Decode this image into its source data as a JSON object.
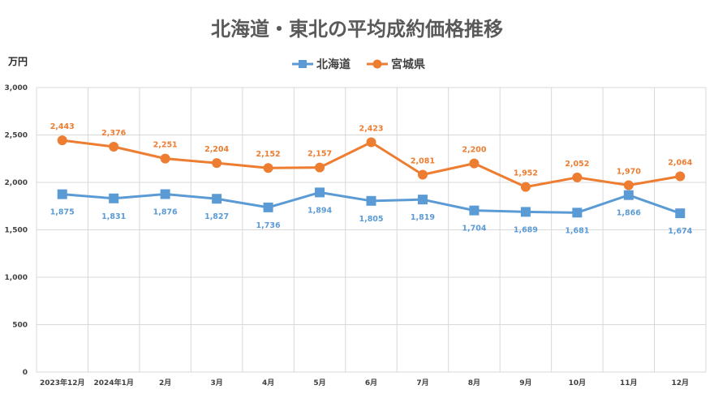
{
  "chart_data": {
    "type": "line",
    "title": "北海道・東北の平均成約価格推移",
    "ylabel": "万円",
    "ylim": [
      0,
      3000
    ],
    "yticks": [
      0,
      500,
      1000,
      1500,
      2000,
      2500,
      3000
    ],
    "ytick_labels": [
      "0",
      "500",
      "1,000",
      "1,500",
      "2,000",
      "2,500",
      "3,000"
    ],
    "categories": [
      "2023年12月",
      "2024年1月",
      "2月",
      "3月",
      "4月",
      "5月",
      "6月",
      "7月",
      "8月",
      "9月",
      "10月",
      "11月",
      "12月"
    ],
    "legend_position": "top-center",
    "grid": true,
    "series": [
      {
        "name": "北海道",
        "color": "#5b9bd5",
        "marker": "square",
        "values": [
          1875,
          1831,
          1876,
          1827,
          1736,
          1894,
          1805,
          1819,
          1704,
          1689,
          1681,
          1866,
          1674
        ],
        "labels": [
          "1,875",
          "1,831",
          "1,876",
          "1,827",
          "1,736",
          "1,894",
          "1,805",
          "1,819",
          "1,704",
          "1,689",
          "1,681",
          "1,866",
          "1,674"
        ]
      },
      {
        "name": "宮城県",
        "color": "#ed7d31",
        "marker": "circle",
        "values": [
          2443,
          2376,
          2251,
          2204,
          2152,
          2157,
          2423,
          2081,
          2200,
          1952,
          2052,
          1970,
          2064
        ],
        "labels": [
          "2,443",
          "2,376",
          "2,251",
          "2,204",
          "2,152",
          "2,157",
          "2,423",
          "2,081",
          "2,200",
          "1,952",
          "2,052",
          "1,970",
          "2,064"
        ]
      }
    ]
  }
}
